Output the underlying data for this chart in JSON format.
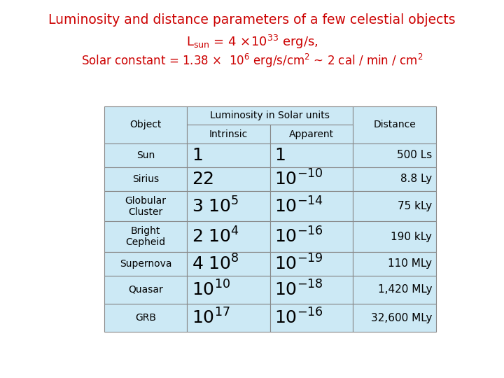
{
  "title": "Luminosity and distance parameters of a few celestial objects",
  "title_color": "#cc0000",
  "subtitle1": "L$_{\\mathrm{sun}}$ = 4 ×10$^{33}$ erg/s,",
  "subtitle2": "Solar constant = 1.38 ×  10$^6$ erg/s/cm$^2$ ~ 2 cal / min / cm$^2$",
  "subtitle_color": "#cc0000",
  "table_bg": "#cce9f5",
  "rows": [
    [
      "Sun",
      "1",
      "1",
      "500 Ls"
    ],
    [
      "Sirius",
      "22",
      "10$^{-10}$",
      "8.8 Ly"
    ],
    [
      "Globular\nCluster",
      "3 10$^5$",
      "10$^{-14}$",
      "75 kLy"
    ],
    [
      "Bright\nCepheid",
      "2 10$^4$",
      "10$^{-16}$",
      "190 kLy"
    ],
    [
      "Supernova",
      "4 10$^8$",
      "10$^{-19}$",
      "110 MLy"
    ],
    [
      "Quasar",
      "10$^{10}$",
      "10$^{-18}$",
      "1,420 MLy"
    ],
    [
      "GRB",
      "10$^{17}$",
      "10$^{-16}$",
      "32,600 MLy"
    ]
  ],
  "border_color": "#888888",
  "header_fontsize": 10,
  "obj_fontsize": 10,
  "large_fontsize": 18,
  "dist_fontsize": 11
}
